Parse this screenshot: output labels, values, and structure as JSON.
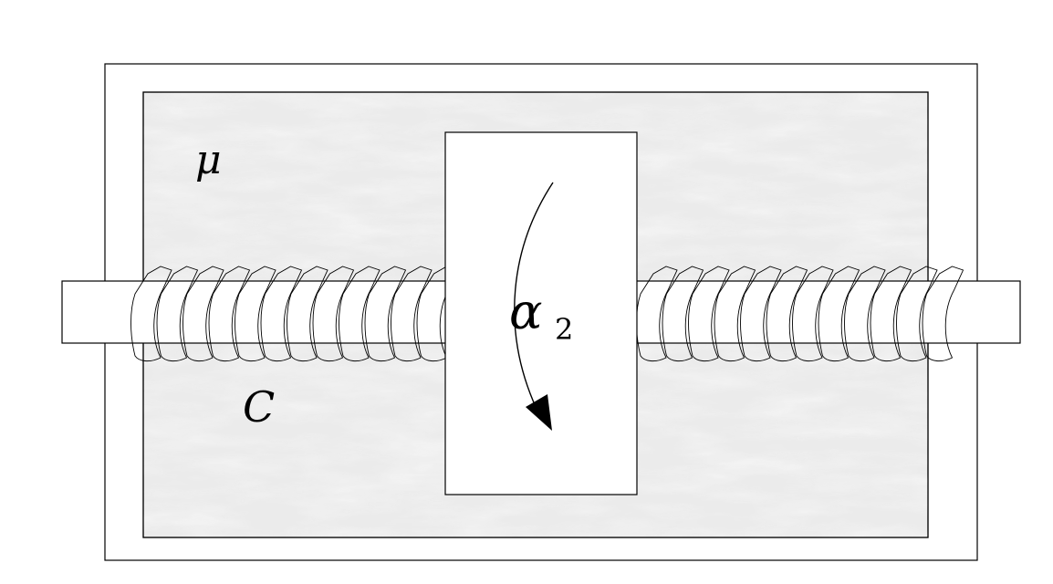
{
  "labels": {
    "mu": "μ",
    "c": "C",
    "alpha": "α",
    "alpha_sub": "2"
  },
  "colors": {
    "line": "#000000",
    "medium_fill": "#ebebeb",
    "background": "#ffffff"
  }
}
